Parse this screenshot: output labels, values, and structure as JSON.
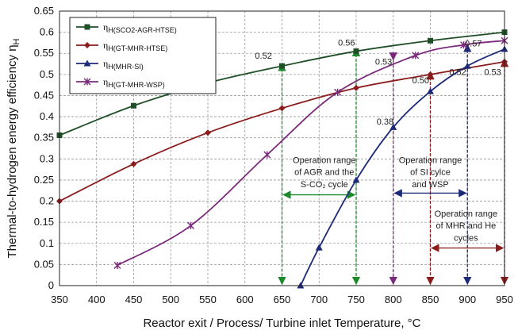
{
  "chart_data": {
    "type": "line",
    "xlabel": "Reactor exit / Process/ Turbine inlet Temperature, °C",
    "ylabel_main": "Thermal-to-hydrogen energy efficiency η",
    "ylabel_sub": "H",
    "xlim": [
      350,
      950
    ],
    "ylim": [
      0,
      0.65
    ],
    "xticks": [
      "350",
      "400",
      "450",
      "500",
      "550",
      "600",
      "650",
      "700",
      "750",
      "800",
      "850",
      "900",
      "950"
    ],
    "yticks": [
      "0",
      "0.05",
      "0.1",
      "0.15",
      "0.2",
      "0.25",
      "0.3",
      "0.35",
      "0.4",
      "0.45",
      "0.5",
      "0.55",
      "0.6",
      "0.65"
    ],
    "grid": true,
    "legend_position": "top-left",
    "series": [
      {
        "name": "η",
        "name_sub": "H(SCO2-AGR-HTSE)",
        "color": "#1f4f27",
        "marker": "square",
        "x": [
          350,
          450,
          550,
          650,
          750,
          850,
          950
        ],
        "y": [
          0.356,
          0.426,
          0.48,
          0.52,
          0.555,
          0.58,
          0.6
        ]
      },
      {
        "name": "η",
        "name_sub": "H(GT-MHR-HTSE)",
        "color": "#8a1c1c",
        "marker": "diamond",
        "x": [
          350,
          450,
          550,
          650,
          750,
          850,
          950
        ],
        "y": [
          0.2,
          0.288,
          0.362,
          0.42,
          0.468,
          0.5,
          0.53
        ]
      },
      {
        "name": "η",
        "name_sub": "H(MHR-SI)",
        "color": "#1e2a78",
        "marker": "triangle",
        "x": [
          675,
          700,
          750,
          800,
          850,
          900,
          950
        ],
        "y": [
          0.0,
          0.09,
          0.25,
          0.375,
          0.46,
          0.52,
          0.56
        ]
      },
      {
        "name": "η",
        "name_sub": "H(GT-MHR-WSP)",
        "color": "#7a2a7a",
        "marker": "star",
        "x": [
          428,
          527,
          630,
          725,
          830,
          895,
          950
        ],
        "y": [
          0.048,
          0.142,
          0.31,
          0.458,
          0.545,
          0.57,
          0.58
        ]
      }
    ],
    "annotations": [
      {
        "text": "0.52",
        "x": 625,
        "y": 0.537
      },
      {
        "text": "0.56",
        "x": 737,
        "y": 0.568
      },
      {
        "text": "0.53",
        "x": 787,
        "y": 0.523
      },
      {
        "text": "0.57",
        "x": 908,
        "y": 0.566
      },
      {
        "text": "0.50",
        "x": 837,
        "y": 0.479
      },
      {
        "text": "0.52",
        "x": 887,
        "y": 0.499
      },
      {
        "text": "0.53",
        "x": 934,
        "y": 0.499
      },
      {
        "text": "0.38",
        "x": 789,
        "y": 0.381
      }
    ],
    "range_boxes": [
      {
        "lines": [
          "Operation range",
          "of AGR and the",
          "S-CO₂ cycle"
        ],
        "color": "#1a8a2a",
        "x_from": 650,
        "x_to": 750
      },
      {
        "lines": [
          "Operation range",
          "of SI cylce",
          "and WSP"
        ],
        "color": "#1e2a78",
        "x_from": 800,
        "x_to": 900
      },
      {
        "lines": [
          "Operation range",
          "of MHR and He",
          "cycles"
        ],
        "color": "#8a1c1c",
        "x_from": 850,
        "x_to": 950
      }
    ]
  }
}
